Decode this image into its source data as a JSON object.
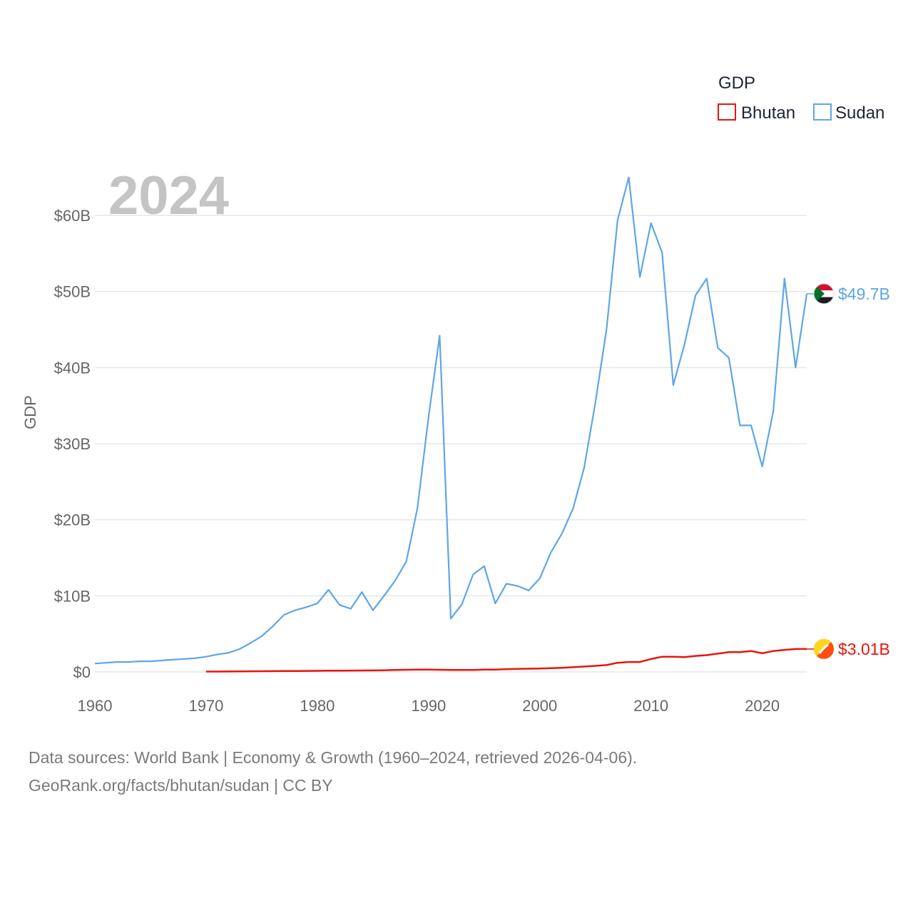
{
  "footer": {
    "sources": "Data sources: World Bank | Economy & Growth (1960–2024, retrieved 2026-04-06).",
    "credit": "GeoRank.org/facts/bhutan/sudan | CC BY"
  },
  "chart_data": {
    "type": "line",
    "title": "",
    "year_label": "2024",
    "ylabel": "GDP",
    "xlabel": "",
    "xlim": [
      1960,
      2024
    ],
    "ylim": [
      0,
      65
    ],
    "unit": "billions USD",
    "x_ticks": [
      1960,
      1970,
      1980,
      1990,
      2000,
      2010,
      2020
    ],
    "y_ticks": [
      {
        "value": 0,
        "label": "$0"
      },
      {
        "value": 10,
        "label": "$10B"
      },
      {
        "value": 20,
        "label": "$20B"
      },
      {
        "value": 30,
        "label": "$30B"
      },
      {
        "value": 40,
        "label": "$40B"
      },
      {
        "value": 50,
        "label": "$50B"
      },
      {
        "value": 60,
        "label": "$60B"
      }
    ],
    "legend": {
      "title": "GDP",
      "position": "top-right"
    },
    "grid": true,
    "series": [
      {
        "name": "Bhutan",
        "color": "#e8150d",
        "end_label": "$3.01B",
        "start_year": 1970,
        "values": [
          0.05,
          0.05,
          0.06,
          0.07,
          0.08,
          0.09,
          0.1,
          0.11,
          0.12,
          0.13,
          0.14,
          0.16,
          0.17,
          0.18,
          0.19,
          0.2,
          0.22,
          0.25,
          0.28,
          0.3,
          0.3,
          0.28,
          0.25,
          0.26,
          0.26,
          0.3,
          0.31,
          0.37,
          0.39,
          0.42,
          0.45,
          0.49,
          0.53,
          0.62,
          0.7,
          0.8,
          0.9,
          1.2,
          1.3,
          1.3,
          1.7,
          2.0,
          2.0,
          1.95,
          2.1,
          2.2,
          2.4,
          2.6,
          2.6,
          2.75,
          2.45,
          2.75,
          2.9,
          3.01,
          3.01
        ]
      },
      {
        "name": "Sudan",
        "color": "#5da6e7",
        "end_label": "$49.7B",
        "start_year": 1960,
        "values": [
          1.1,
          1.2,
          1.3,
          1.3,
          1.4,
          1.4,
          1.5,
          1.6,
          1.7,
          1.8,
          2.0,
          2.3,
          2.5,
          3.0,
          3.8,
          4.7,
          6.0,
          7.5,
          8.1,
          8.5,
          9.0,
          10.8,
          8.8,
          8.3,
          10.5,
          8.1,
          10.0,
          12.0,
          14.5,
          21.5,
          33.5,
          44.2,
          7.0,
          8.9,
          12.8,
          13.9,
          9.0,
          11.6,
          11.3,
          10.7,
          12.3,
          15.7,
          18.2,
          21.5,
          26.9,
          35.4,
          45.0,
          59.4,
          65.0,
          51.9,
          59.0,
          55.1,
          37.7,
          43.0,
          49.5,
          51.7,
          42.6,
          41.3,
          32.4,
          32.4,
          27.0,
          34.3,
          51.7,
          40.0,
          49.7
        ]
      }
    ]
  }
}
